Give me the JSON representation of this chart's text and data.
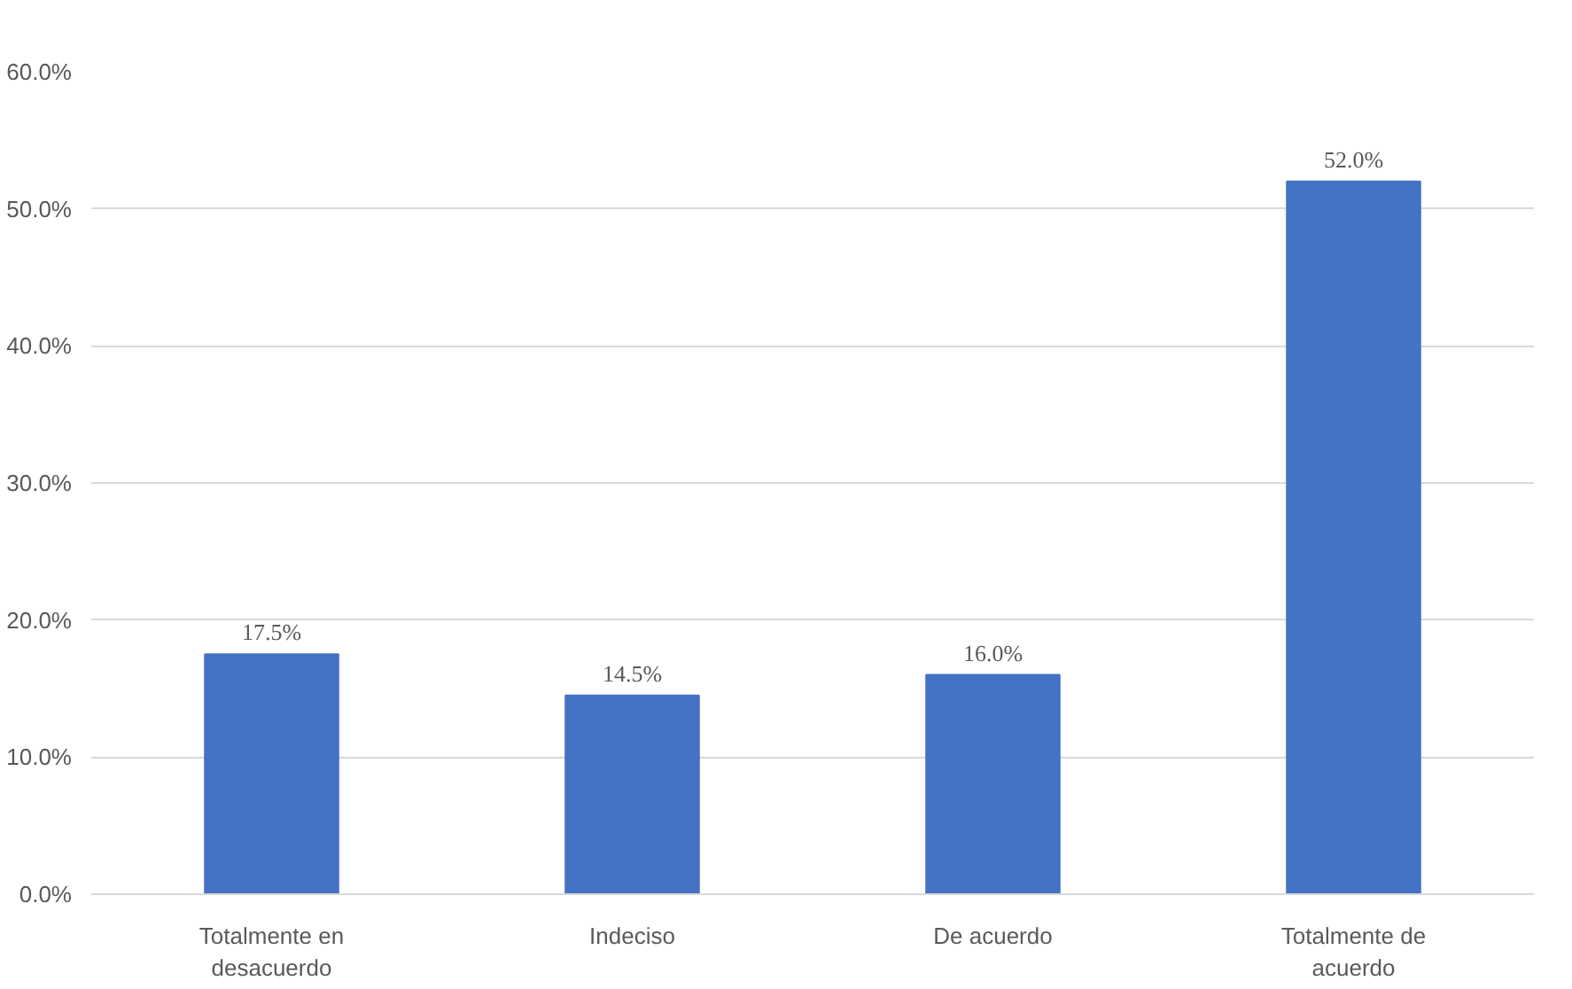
{
  "chart_data": {
    "type": "bar",
    "categories": [
      "Totalmente en desacuerdo",
      "Indeciso",
      "De acuerdo",
      "Totalmente de acuerdo"
    ],
    "values": [
      17.5,
      14.5,
      16.0,
      52.0
    ],
    "value_labels": [
      "17.5%",
      "14.5%",
      "16.0%",
      "52.0%"
    ],
    "color": "#4472c4",
    "ylim": [
      0,
      60
    ],
    "yticks": [
      {
        "value": 0,
        "label": "0.0%"
      },
      {
        "value": 10,
        "label": "10.0%"
      },
      {
        "value": 20,
        "label": "20.0%"
      },
      {
        "value": 30,
        "label": "30.0%"
      },
      {
        "value": 40,
        "label": "40.0%"
      },
      {
        "value": 50,
        "label": "50.0%"
      },
      {
        "value": 60,
        "label": "60.0%"
      }
    ],
    "grid": "y"
  }
}
